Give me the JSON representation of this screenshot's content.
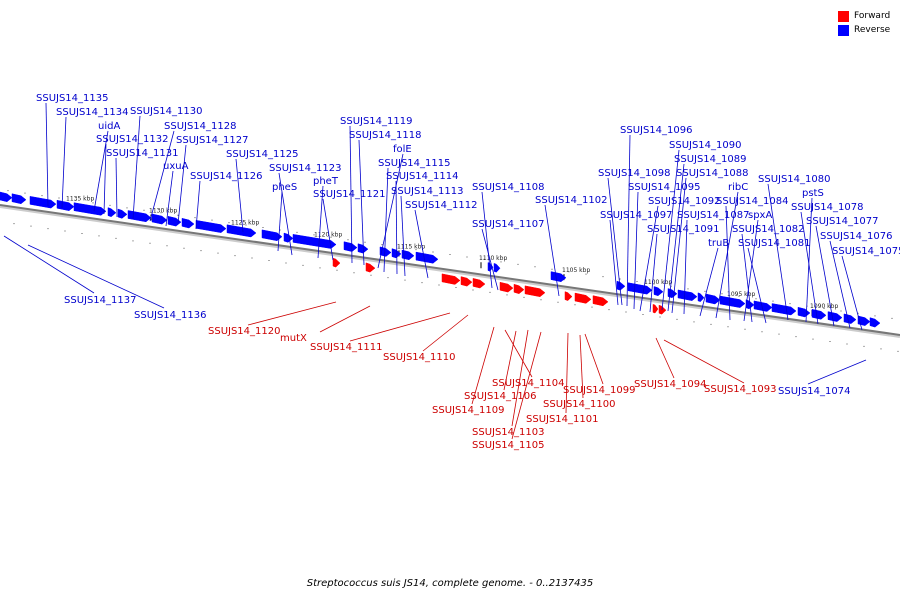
{
  "legend": {
    "forward": {
      "label": "Forward",
      "color": "#ff0000"
    },
    "reverse": {
      "label": "Reverse",
      "color": "#0000ff"
    }
  },
  "caption": "Streptococcus suis JS14, complete genome. - 0..2137435",
  "colors": {
    "forward": "#ff0000",
    "reverse": "#0000ff",
    "forward_label": "#cc0000",
    "reverse_label": "#0000cc",
    "backbone": "#888888"
  },
  "ticks": [
    "1135 kbp",
    "1130 kbp",
    "1125 kbp",
    "1120 kbp",
    "1115 kbp",
    "1110 kbp",
    "1105 kbp",
    "1100 kbp",
    "1095 kbp",
    "1090 kbp"
  ],
  "reverse_labels": [
    "SSUJS14_1135",
    "SSUJS14_1134",
    "uidA",
    "SSUJS14_1132",
    "SSUJS14_1131",
    "SSUJS14_1130",
    "SSUJS14_1128",
    "SSUJS14_1127",
    "uxuA",
    "SSUJS14_1126",
    "SSUJS14_1125",
    "pheS",
    "SSUJS14_1123",
    "pheT",
    "SSUJS14_1121",
    "SSUJS14_1119",
    "SSUJS14_1118",
    "folE",
    "SSUJS14_1115",
    "SSUJS14_1114",
    "SSUJS14_1113",
    "SSUJS14_1112",
    "SSUJS14_1108",
    "SSUJS14_1107",
    "SSUJS14_1102",
    "SSUJS14_1096",
    "SSUJS14_1090",
    "SSUJS14_1089",
    "SSUJS14_1098",
    "SSUJS14_1088",
    "SSUJS14_1095",
    "ribC",
    "SSUJS14_1080",
    "SSUJS14_1097",
    "SSUJS14_1092",
    "SSUJS14_1084",
    "pstS",
    "SSUJS14_1087",
    "spxA",
    "SSUJS14_1078",
    "SSUJS14_1091",
    "SSUJS14_1082",
    "SSUJS14_1077",
    "truB",
    "SSUJS14_1081",
    "SSUJS14_1076",
    "SSUJS14_1075",
    "SSUJS14_1137",
    "SSUJS14_1136",
    "SSUJS14_1074"
  ],
  "forward_labels": [
    "SSUJS14_1120",
    "mutX",
    "SSUJS14_1111",
    "SSUJS14_1110",
    "SSUJS14_1104",
    "SSUJS14_1099",
    "SSUJS14_1106",
    "SSUJS14_1100",
    "SSUJS14_1109",
    "SSUJS14_1101",
    "SSUJS14_1103",
    "SSUJS14_1105",
    "SSUJS14_1094",
    "SSUJS14_1093"
  ]
}
